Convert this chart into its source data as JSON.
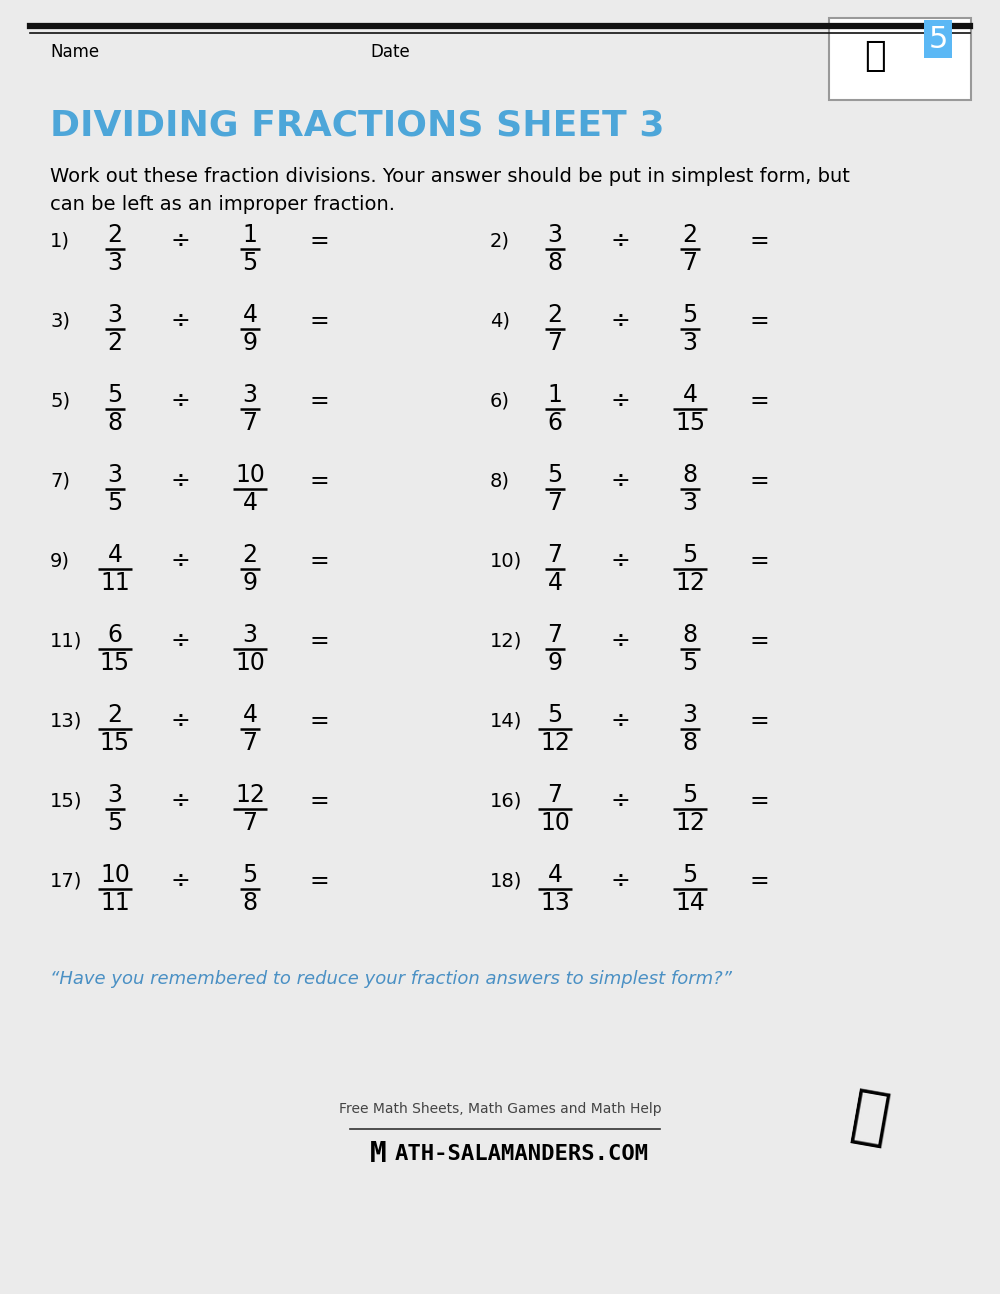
{
  "title": "DIVIDING FRACTIONS SHEET 3",
  "title_color": "#4da6d9",
  "bg_color": "#ebebeb",
  "header_line_color": "#1a1a1a",
  "name_label": "Name",
  "date_label": "Date",
  "instruction_line1": "Work out these fraction divisions. Your answer should be put in simplest form, but",
  "instruction_line2": "can be left as an improper fraction.",
  "footer_quote": "“Have you remembered to reduce your fraction answers to simplest form?”",
  "footer_quote_color": "#4a90c4",
  "footer_text1": "Free Math Sheets, Math Games and Math Help",
  "footer_text2": "ATH-SALAMANDERS.COM",
  "problems": [
    {
      "num": "1)",
      "n1": "2",
      "d1": "3",
      "n2": "1",
      "d2": "5"
    },
    {
      "num": "2)",
      "n1": "3",
      "d1": "8",
      "n2": "2",
      "d2": "7"
    },
    {
      "num": "3)",
      "n1": "3",
      "d1": "2",
      "n2": "4",
      "d2": "9"
    },
    {
      "num": "4)",
      "n1": "2",
      "d1": "7",
      "n2": "5",
      "d2": "3"
    },
    {
      "num": "5)",
      "n1": "5",
      "d1": "8",
      "n2": "3",
      "d2": "7"
    },
    {
      "num": "6)",
      "n1": "1",
      "d1": "6",
      "n2": "4",
      "d2": "15"
    },
    {
      "num": "7)",
      "n1": "3",
      "d1": "5",
      "n2": "10",
      "d2": "4"
    },
    {
      "num": "8)",
      "n1": "5",
      "d1": "7",
      "n2": "8",
      "d2": "3"
    },
    {
      "num": "9)",
      "n1": "4",
      "d1": "11",
      "n2": "2",
      "d2": "9"
    },
    {
      "num": "10)",
      "n1": "7",
      "d1": "4",
      "n2": "5",
      "d2": "12"
    },
    {
      "num": "11)",
      "n1": "6",
      "d1": "15",
      "n2": "3",
      "d2": "10"
    },
    {
      "num": "12)",
      "n1": "7",
      "d1": "9",
      "n2": "8",
      "d2": "5"
    },
    {
      "num": "13)",
      "n1": "2",
      "d1": "15",
      "n2": "4",
      "d2": "7"
    },
    {
      "num": "14)",
      "n1": "5",
      "d1": "12",
      "n2": "3",
      "d2": "8"
    },
    {
      "num": "15)",
      "n1": "3",
      "d1": "5",
      "n2": "12",
      "d2": "7"
    },
    {
      "num": "16)",
      "n1": "7",
      "d1": "10",
      "n2": "5",
      "d2": "12"
    },
    {
      "num": "17)",
      "n1": "10",
      "d1": "11",
      "n2": "5",
      "d2": "8"
    },
    {
      "num": "18)",
      "n1": "4",
      "d1": "13",
      "n2": "5",
      "d2": "14"
    }
  ]
}
